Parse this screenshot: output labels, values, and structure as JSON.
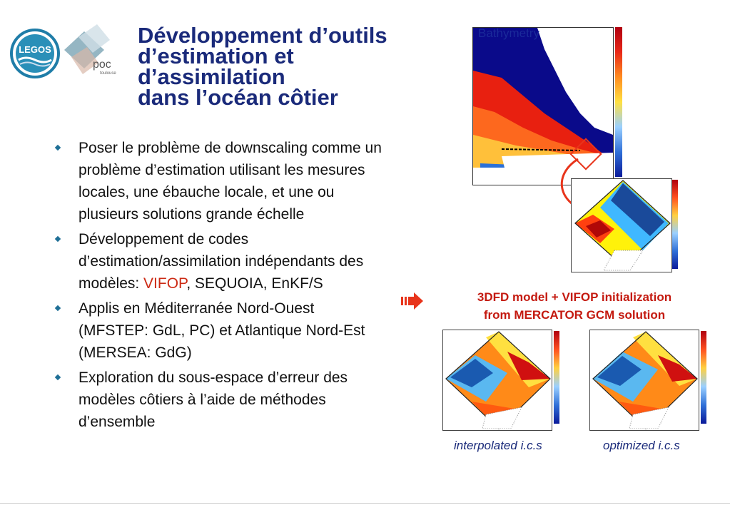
{
  "logos": {
    "legos": "LEGOS",
    "poc": "poc",
    "poc_sub": "toulouse"
  },
  "title": {
    "line1": "Développement d’outils",
    "line2": "d’estimation et",
    "line3": "d’assimilation",
    "line4": "dans l’océan côtier"
  },
  "bullets": [
    {
      "text": "Poser le problème de downscaling comme un problème d’estimation utilisant les mesures locales, une ébauche locale, et une ou plusieurs solutions grande échelle"
    },
    {
      "before": "Développement de codes d’estimation/assimilation indépendants des modèles: ",
      "highlight": "VIFOP",
      "after": ", SEQUOIA, EnKF/S"
    },
    {
      "text": "Applis en Méditerranée Nord-Ouest (MFSTEP: GdL, PC) et Atlantique Nord-Est (MERSEA: GdG)"
    },
    {
      "text": "Exploration du sous-espace d’erreur des modèles côtiers à l’aide de méthodes d’ensemble"
    }
  ],
  "figures": {
    "bathymetry_label": "Bathymetry",
    "caption_line1": "3DFD model + VIFOP initialization",
    "caption_line2": "from MERCATOR GCM solution",
    "label_left": "interpolated i.c.s",
    "label_right": "optimized i.c.s"
  },
  "colors": {
    "title": "#1a2a7a",
    "highlight": "#cc2a14",
    "caption": "#c41a10",
    "arrow": "#e8341b"
  }
}
